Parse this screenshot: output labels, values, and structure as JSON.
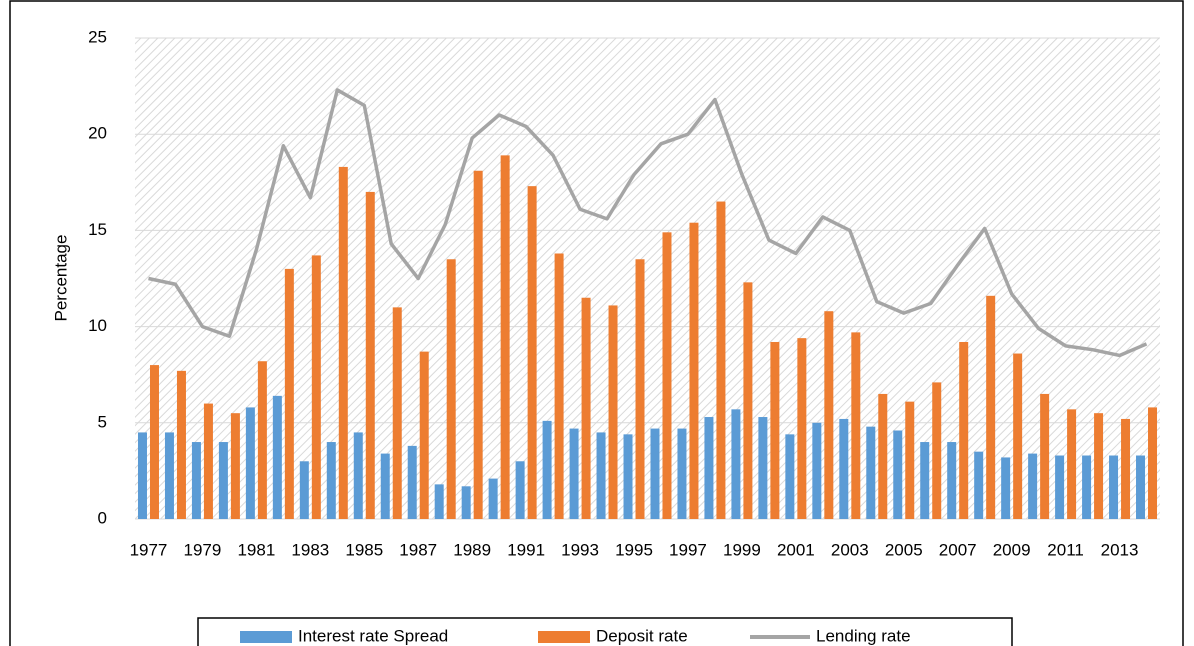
{
  "chart_data": {
    "type": "bar",
    "y_label": "Percentage",
    "categories": [
      "1977",
      null,
      "1979",
      null,
      "1981",
      null,
      "1983",
      null,
      "1985",
      null,
      "1987",
      null,
      "1989",
      null,
      "1991",
      null,
      "1993",
      null,
      "1995",
      null,
      "1997",
      null,
      "1999",
      null,
      "2001",
      null,
      "2003",
      null,
      "2005",
      null,
      "2007",
      null,
      "2009",
      null,
      "2011",
      null,
      "2013",
      null
    ],
    "series": [
      {
        "name": "Interest rate Spread",
        "type": "bar",
        "color": "#5b9bd5",
        "values": [
          4.5,
          4.5,
          4.0,
          4.0,
          5.8,
          6.4,
          3.0,
          4.0,
          4.5,
          3.4,
          3.8,
          1.8,
          1.7,
          2.1,
          3.0,
          5.1,
          4.7,
          4.5,
          4.4,
          4.7,
          4.7,
          5.3,
          5.7,
          5.3,
          4.4,
          5.0,
          5.2,
          4.8,
          4.6,
          4.0,
          4.0,
          3.5,
          3.2,
          3.4,
          3.3,
          3.3,
          3.3,
          3.3
        ]
      },
      {
        "name": "Deposit rate",
        "type": "bar",
        "color": "#ed7d31",
        "values": [
          8.0,
          7.7,
          6.0,
          5.5,
          8.2,
          13.0,
          13.7,
          18.3,
          17.0,
          11.0,
          8.7,
          13.5,
          18.1,
          18.9,
          17.3,
          13.8,
          11.5,
          11.1,
          13.5,
          14.9,
          15.4,
          16.5,
          12.3,
          9.2,
          9.4,
          10.8,
          9.7,
          6.5,
          6.1,
          7.1,
          9.2,
          11.6,
          8.6,
          6.5,
          5.7,
          5.5,
          5.2,
          5.8
        ]
      },
      {
        "name": "Lending rate",
        "type": "line",
        "color": "#a5a5a5",
        "values": [
          12.5,
          12.2,
          10.0,
          9.5,
          14.0,
          19.4,
          16.7,
          22.3,
          21.5,
          14.3,
          12.5,
          15.3,
          19.8,
          21.0,
          20.4,
          18.9,
          16.1,
          15.6,
          17.9,
          19.5,
          20.0,
          21.8,
          17.9,
          14.5,
          13.8,
          15.7,
          15.0,
          11.3,
          10.7,
          11.2,
          13.2,
          15.1,
          11.7,
          9.9,
          9.0,
          8.8,
          8.5,
          9.1
        ]
      }
    ],
    "ylim": [
      0,
      25
    ],
    "yticks": [
      0,
      5,
      10,
      15,
      20,
      25
    ],
    "grid": true,
    "legend": "bottom"
  }
}
